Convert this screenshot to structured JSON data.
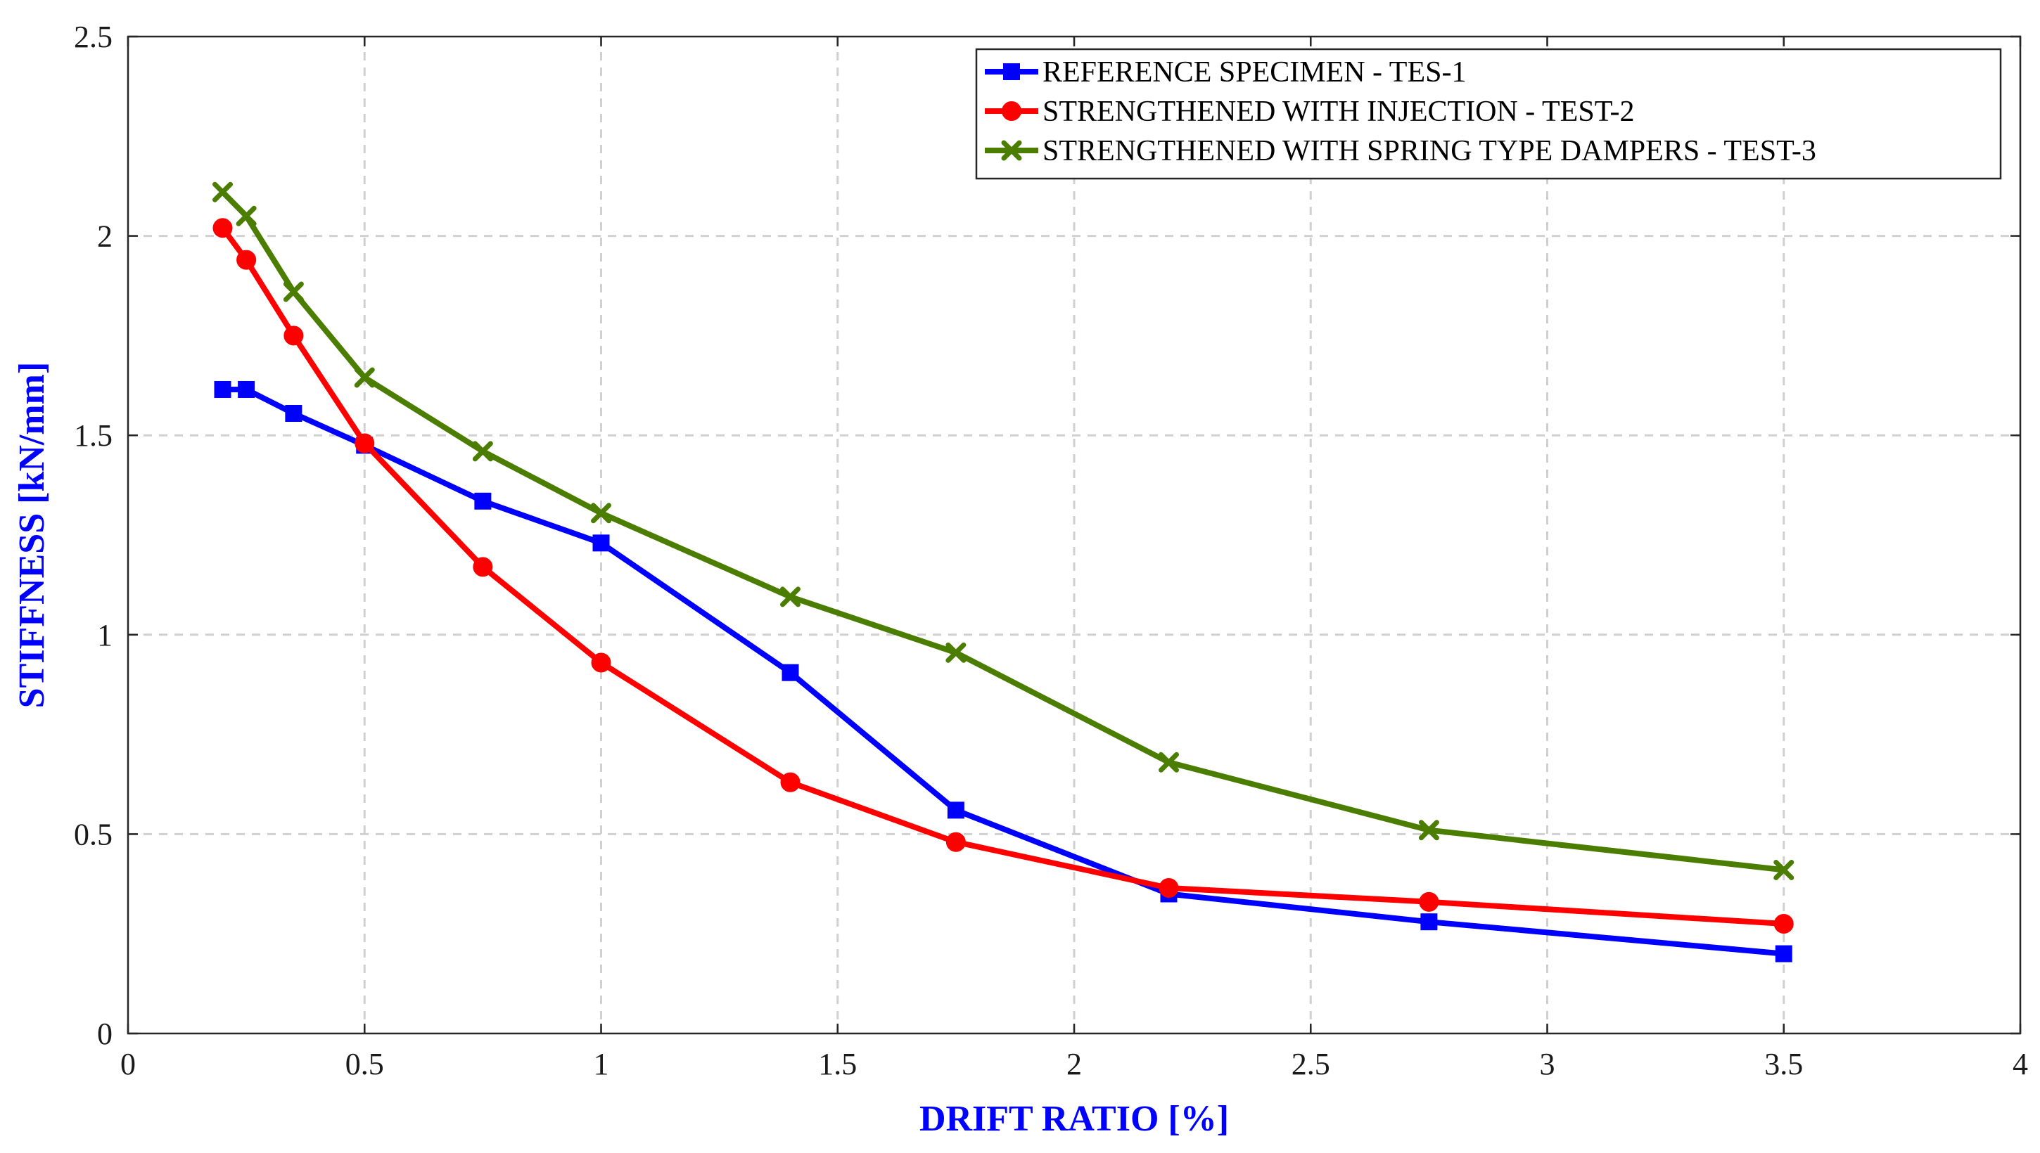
{
  "chart_data": {
    "type": "line",
    "title": "",
    "xlabel": "DRIFT RATIO [%]",
    "ylabel": "STIFFNESS [kN/mm]",
    "xlim": [
      0,
      4
    ],
    "ylim": [
      0,
      2.5
    ],
    "xticks": [
      0,
      0.5,
      1,
      1.5,
      2,
      2.5,
      3,
      3.5,
      4
    ],
    "xtick_labels": [
      "0",
      "0.5",
      "1",
      "1.5",
      "2",
      "2.5",
      "3",
      "3.5",
      "4"
    ],
    "yticks": [
      0,
      0.5,
      1,
      1.5,
      2,
      2.5
    ],
    "ytick_labels": [
      "0",
      "0.5",
      "1",
      "1.5",
      "2",
      "2.5"
    ],
    "grid": true,
    "legend_position": "top-right",
    "series": [
      {
        "name": "REFERENCE SPECIMEN - TES-1",
        "color": "#0000ff",
        "marker": "square",
        "x": [
          0.2,
          0.25,
          0.35,
          0.5,
          0.75,
          1.0,
          1.4,
          1.75,
          2.2,
          2.75,
          3.5
        ],
        "y": [
          1.615,
          1.615,
          1.555,
          1.475,
          1.335,
          1.23,
          0.905,
          0.56,
          0.35,
          0.28,
          0.2
        ]
      },
      {
        "name": "STRENGTHENED WITH INJECTION - TEST-2",
        "color": "#ff0000",
        "marker": "circle",
        "x": [
          0.2,
          0.25,
          0.35,
          0.5,
          0.75,
          1.0,
          1.4,
          1.75,
          2.2,
          2.75,
          3.5
        ],
        "y": [
          2.02,
          1.94,
          1.75,
          1.48,
          1.17,
          0.93,
          0.63,
          0.48,
          0.365,
          0.33,
          0.275
        ]
      },
      {
        "name": "STRENGTHENED WITH SPRING TYPE DAMPERS - TEST-3",
        "color": "#4a7d00",
        "marker": "x",
        "x": [
          0.2,
          0.25,
          0.35,
          0.5,
          0.75,
          1.0,
          1.4,
          1.75,
          2.2,
          2.75,
          3.5
        ],
        "y": [
          2.11,
          2.05,
          1.86,
          1.645,
          1.46,
          1.305,
          1.095,
          0.955,
          0.68,
          0.51,
          0.41
        ]
      }
    ]
  }
}
